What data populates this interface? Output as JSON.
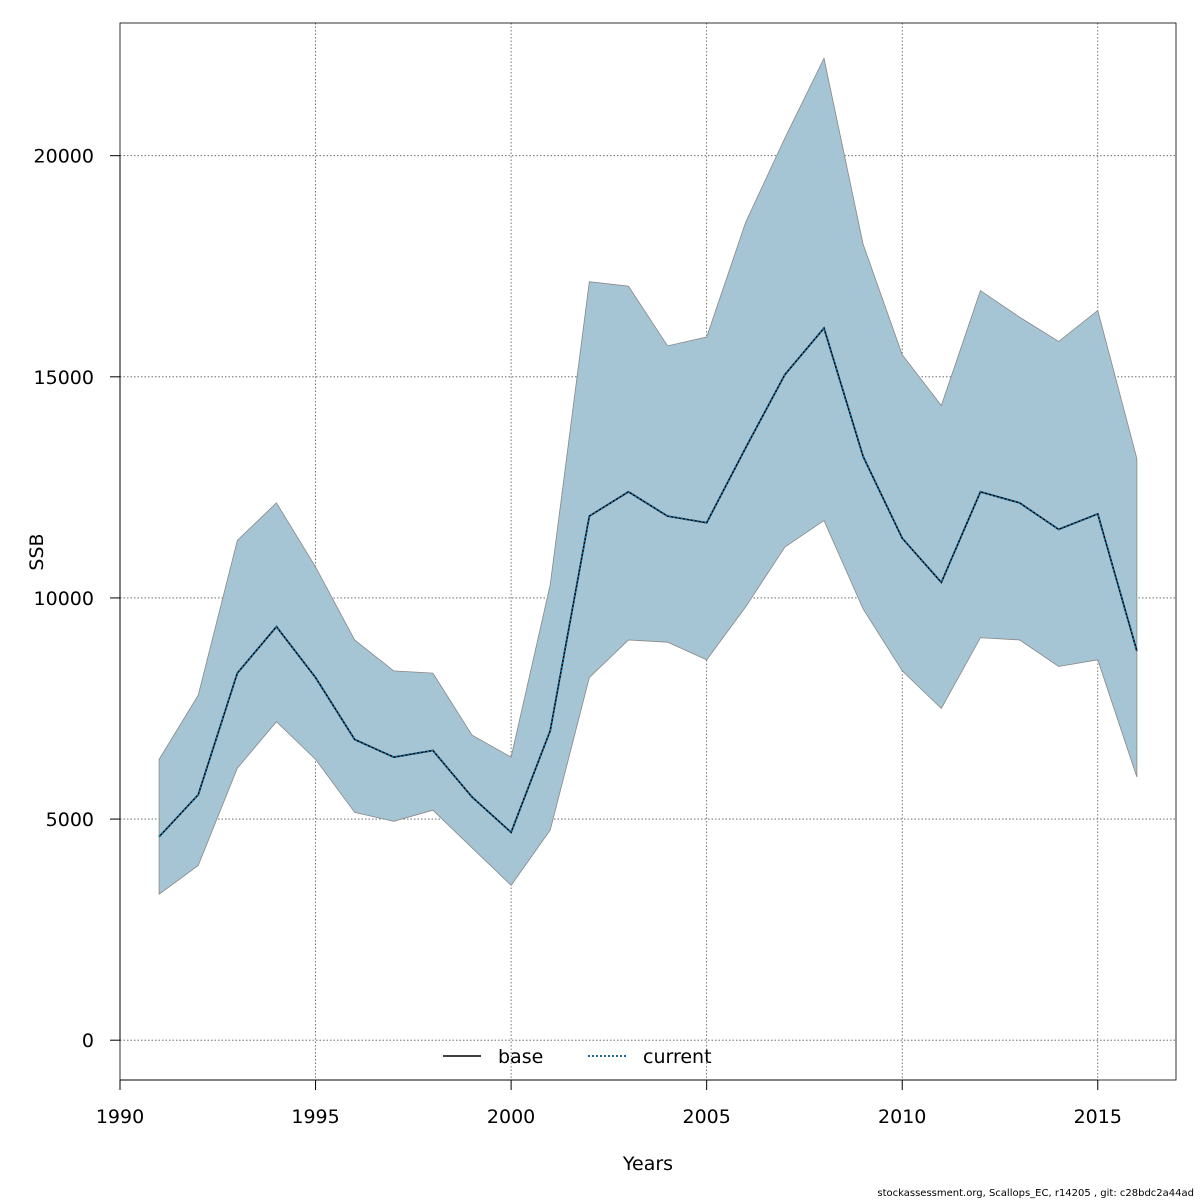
{
  "chart_data": {
    "type": "area",
    "xlabel": "Years",
    "ylabel": "SSB",
    "xlim": [
      1990,
      2017
    ],
    "ylim": [
      -900,
      23000
    ],
    "x_ticks": [
      1990,
      1995,
      2000,
      2005,
      2010,
      2015
    ],
    "y_ticks": [
      0,
      5000,
      10000,
      15000,
      20000
    ],
    "grid": true,
    "grid_style": "dotted",
    "legend_position": "bottom-center",
    "x": [
      1991,
      1992,
      1993,
      1994,
      1995,
      1996,
      1997,
      1998,
      1999,
      2000,
      2001,
      2002,
      2003,
      2004,
      2005,
      2006,
      2007,
      2008,
      2009,
      2010,
      2011,
      2012,
      2013,
      2014,
      2015,
      2016
    ],
    "series": [
      {
        "name": "base",
        "style": "solid",
        "color": "#000000",
        "values": [
          4600,
          5550,
          8300,
          9350,
          8200,
          6800,
          6400,
          6550,
          5500,
          4700,
          7000,
          11850,
          12400,
          11850,
          11700,
          13400,
          15050,
          16100,
          13200,
          11350,
          10350,
          12400,
          12150,
          11550,
          11900,
          8800
        ]
      },
      {
        "name": "current",
        "style": "dotted",
        "color": "#1a6b9a",
        "values": [
          4600,
          5550,
          8300,
          9350,
          8200,
          6800,
          6400,
          6550,
          5500,
          4700,
          7000,
          11850,
          12400,
          11850,
          11700,
          13400,
          15050,
          16100,
          13200,
          11350,
          10350,
          12400,
          12150,
          11550,
          11900,
          8800
        ]
      }
    ],
    "interval": {
      "fill_color": "#a5c4d4",
      "edge_color": "#888888",
      "upper": [
        6350,
        7800,
        11300,
        12150,
        10700,
        9050,
        8350,
        8300,
        6900,
        6400,
        10300,
        17150,
        17050,
        15700,
        15900,
        18500,
        20400,
        22200,
        18000,
        15500,
        14350,
        16950,
        16350,
        15800,
        16500,
        13150
      ],
      "lower": [
        3300,
        3950,
        6150,
        7200,
        6350,
        5150,
        4950,
        5200,
        4350,
        3500,
        4750,
        8200,
        9050,
        9000,
        8600,
        9800,
        11150,
        11750,
        9750,
        8350,
        7500,
        9100,
        9050,
        8450,
        8600,
        5950
      ]
    }
  },
  "footer_text": "stockassessment.org, Scallops_EC, r14205 , git: c28bdc2a44ad"
}
